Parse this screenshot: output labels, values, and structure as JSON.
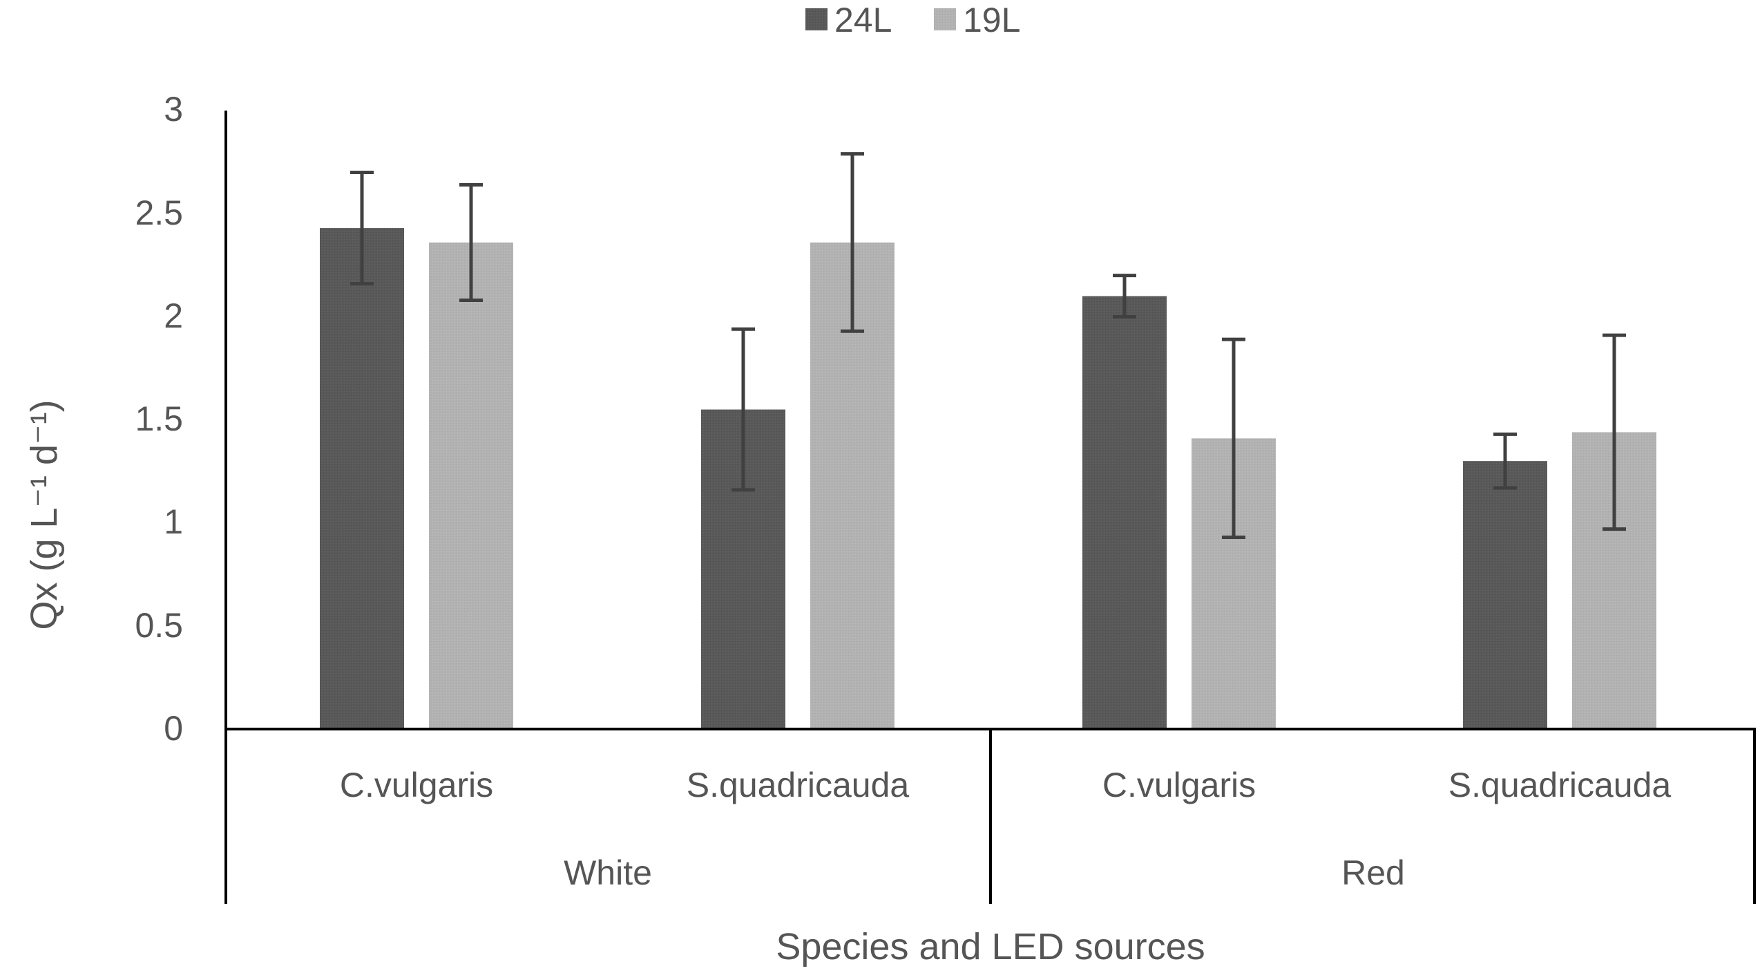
{
  "chart_data": {
    "type": "bar",
    "xlabel": "Species and LED sources",
    "ylabel": "Qx (g L⁻¹ d⁻¹)",
    "ylim": [
      0,
      3
    ],
    "yticks": [
      0,
      0.5,
      1,
      1.5,
      2,
      2.5,
      3
    ],
    "ytick_labels": [
      "0",
      "0.5",
      "1",
      "1.5",
      "2",
      "2.5",
      "3"
    ],
    "grid": false,
    "legend": "top",
    "groups": [
      {
        "label": "White",
        "categories": [
          "C.vulgaris",
          "S.quadricauda"
        ]
      },
      {
        "label": "Red",
        "categories": [
          "C.vulgaris",
          "S.quadricauda"
        ]
      }
    ],
    "categories": [
      "C.vulgaris",
      "S.quadricauda",
      "C.vulgaris",
      "S.quadricauda"
    ],
    "series": [
      {
        "name": "24L",
        "color": "#595959",
        "values": [
          2.43,
          1.55,
          2.1,
          1.3
        ],
        "errors": [
          0.27,
          0.39,
          0.1,
          0.13
        ]
      },
      {
        "name": "19L",
        "color": "#b2b2b2",
        "values": [
          2.36,
          2.36,
          1.41,
          1.44
        ],
        "errors": [
          0.28,
          0.43,
          0.48,
          0.47
        ]
      }
    ]
  }
}
